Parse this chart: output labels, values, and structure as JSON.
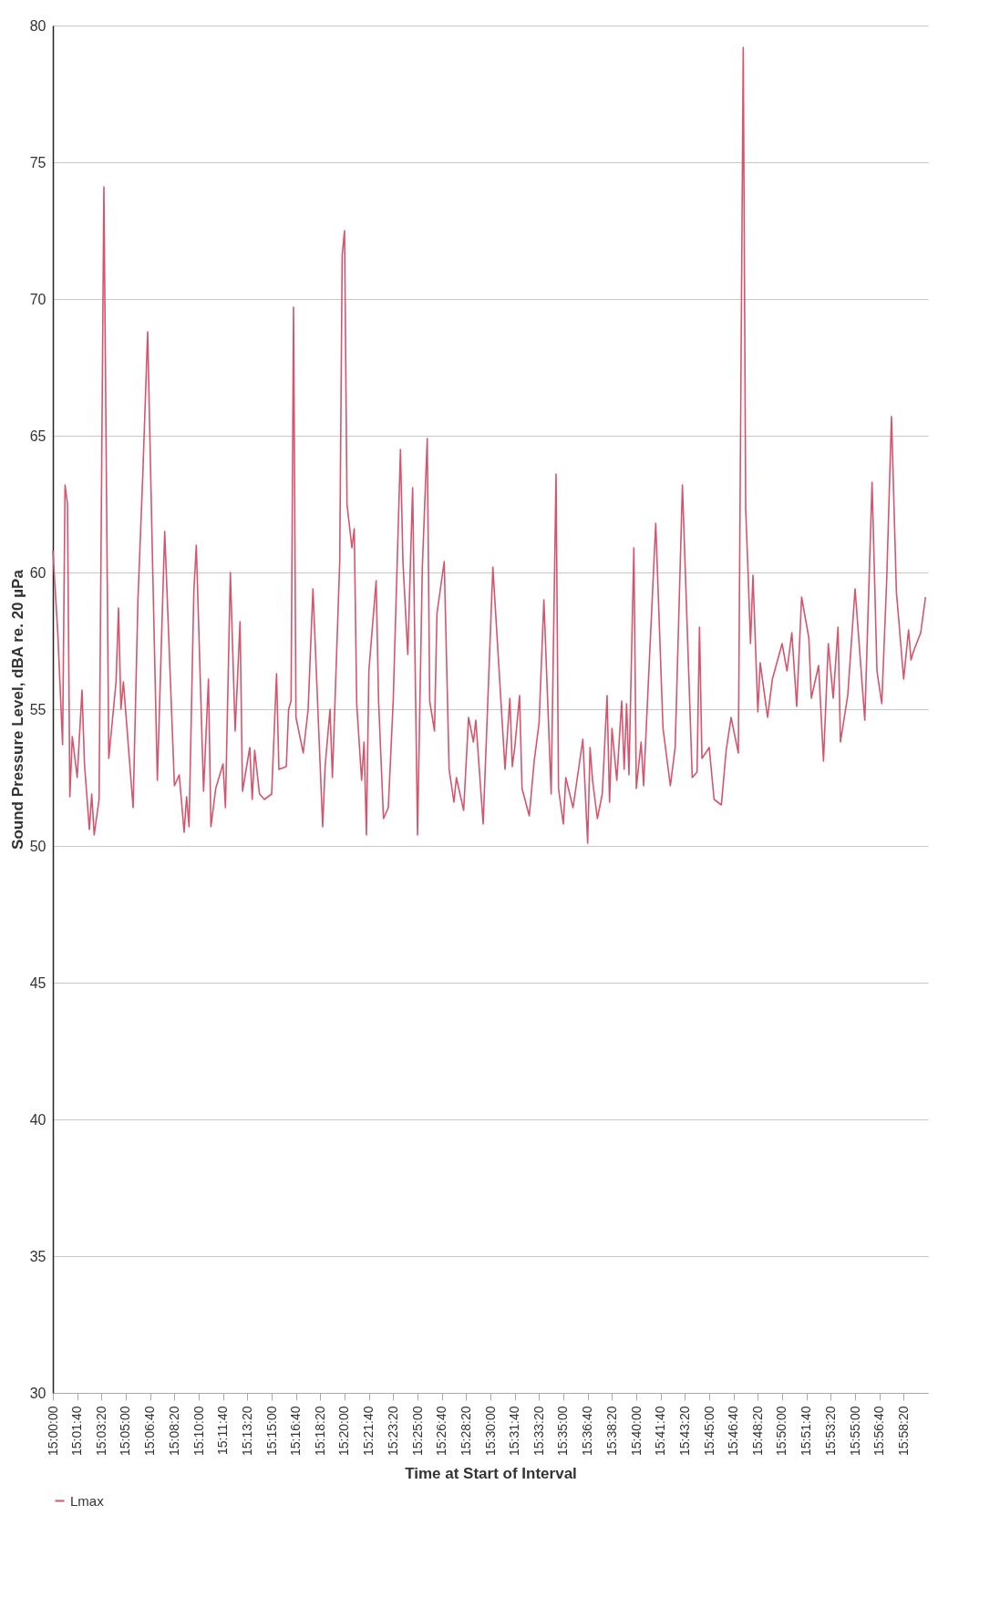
{
  "chart_data": {
    "type": "line",
    "xlabel": "Time at Start of Interval",
    "ylabel": "Sound Pressure Level, dBA re. 20 µPa",
    "xlim": [
      15,
      16
    ],
    "xticks": [
      {
        "value": 15,
        "label": "15:00:00"
      },
      {
        "value": 15.0278,
        "label": "15:01:40"
      },
      {
        "value": 15.0556,
        "label": "15:03:20"
      },
      {
        "value": 15.0833,
        "label": "15:05:00"
      },
      {
        "value": 15.1111,
        "label": "15:06:40"
      },
      {
        "value": 15.1389,
        "label": "15:08:20"
      },
      {
        "value": 15.1667,
        "label": "15:10:00"
      },
      {
        "value": 15.1944,
        "label": "15:11:40"
      },
      {
        "value": 15.2222,
        "label": "15:13:20"
      },
      {
        "value": 15.25,
        "label": "15:15:00"
      },
      {
        "value": 15.2778,
        "label": "15:16:40"
      },
      {
        "value": 15.3056,
        "label": "15:18:20"
      },
      {
        "value": 15.3333,
        "label": "15:20:00"
      },
      {
        "value": 15.3611,
        "label": "15:21:40"
      },
      {
        "value": 15.3889,
        "label": "15:23:20"
      },
      {
        "value": 15.4167,
        "label": "15:25:00"
      },
      {
        "value": 15.4444,
        "label": "15:26:40"
      },
      {
        "value": 15.4722,
        "label": "15:28:20"
      },
      {
        "value": 15.5,
        "label": "15:30:00"
      },
      {
        "value": 15.5278,
        "label": "15:31:40"
      },
      {
        "value": 15.5556,
        "label": "15:33:20"
      },
      {
        "value": 15.5833,
        "label": "15:35:00"
      },
      {
        "value": 15.6111,
        "label": "15:36:40"
      },
      {
        "value": 15.6389,
        "label": "15:38:20"
      },
      {
        "value": 15.6667,
        "label": "15:40:00"
      },
      {
        "value": 15.6944,
        "label": "15:41:40"
      },
      {
        "value": 15.7222,
        "label": "15:43:20"
      },
      {
        "value": 15.75,
        "label": "15:45:00"
      },
      {
        "value": 15.7778,
        "label": "15:46:40"
      },
      {
        "value": 15.8056,
        "label": "15:48:20"
      },
      {
        "value": 15.8333,
        "label": "15:50:00"
      },
      {
        "value": 15.8611,
        "label": "15:51:40"
      },
      {
        "value": 15.8889,
        "label": "15:53:20"
      },
      {
        "value": 15.9167,
        "label": "15:55:00"
      },
      {
        "value": 15.9444,
        "label": "15:56:40"
      },
      {
        "value": 15.9722,
        "label": "15:58:20"
      }
    ],
    "ylim": [
      30,
      80
    ],
    "yticks": [
      30,
      35,
      40,
      45,
      50,
      55,
      60,
      65,
      70,
      75,
      80
    ],
    "grid": "y",
    "legend": "bottom",
    "x": [
      15,
      15.0056,
      15.0111,
      15.0139,
      15.0167,
      15.0194,
      15.0222,
      15.0278,
      15.0333,
      15.0361,
      15.0417,
      15.0444,
      15.0472,
      15.0528,
      15.0583,
      15.0639,
      15.0722,
      15.075,
      15.0778,
      15.0806,
      15.0917,
      15.0972,
      15.1028,
      15.1083,
      15.1139,
      15.1194,
      15.1278,
      15.1389,
      15.1444,
      15.15,
      15.1528,
      15.1556,
      15.1611,
      15.1639,
      15.1722,
      15.1778,
      15.1806,
      15.1861,
      15.1944,
      15.1972,
      15.2028,
      15.2083,
      15.2139,
      15.2167,
      15.225,
      15.2278,
      15.2306,
      15.2361,
      15.2417,
      15.25,
      15.2556,
      15.2583,
      15.2667,
      15.2694,
      15.2722,
      15.275,
      15.2778,
      15.2861,
      15.2917,
      15.2972,
      15.3083,
      15.3111,
      15.3167,
      15.3194,
      15.3222,
      15.3278,
      15.3306,
      15.3333,
      15.3361,
      15.3417,
      15.3444,
      15.3472,
      15.3528,
      15.3556,
      15.3583,
      15.3611,
      15.3694,
      15.3722,
      15.3778,
      15.3833,
      15.3889,
      15.3972,
      15.4,
      15.4056,
      15.4111,
      15.4167,
      15.4222,
      15.4278,
      15.4306,
      15.4361,
      15.4389,
      15.4472,
      15.4528,
      15.4583,
      15.4611,
      15.4694,
      15.475,
      15.4806,
      15.4833,
      15.4917,
      15.5028,
      15.5167,
      15.5222,
      15.525,
      15.5278,
      15.5333,
      15.5361,
      15.5444,
      15.55,
      15.5556,
      15.5611,
      15.5694,
      15.575,
      15.5778,
      15.5833,
      15.5861,
      15.5944,
      15.6056,
      15.6111,
      15.6139,
      15.6167,
      15.6222,
      15.6278,
      15.6333,
      15.6361,
      15.6389,
      15.6444,
      15.65,
      15.6528,
      15.6556,
      15.6583,
      15.6639,
      15.6667,
      15.6722,
      15.675,
      15.6889,
      15.6972,
      15.7056,
      15.7111,
      15.7194,
      15.7306,
      15.7361,
      15.7389,
      15.7417,
      15.75,
      15.7556,
      15.7639,
      15.7694,
      15.775,
      15.7833,
      15.7889,
      15.7917,
      15.7944,
      15.7972,
      15.8,
      15.8056,
      15.8083,
      15.8167,
      15.8222,
      15.8333,
      15.8361,
      15.8389,
      15.8444,
      15.85,
      15.8556,
      15.8639,
      15.8667,
      15.875,
      15.8806,
      15.8861,
      15.8917,
      15.8972,
      15.9,
      15.9083,
      15.9167,
      15.9278,
      15.9361,
      15.9417,
      15.9472,
      15.9528,
      15.9583,
      15.9639,
      15.9722,
      15.9778,
      15.9806,
      15.9833,
      15.9917,
      15.9972
    ],
    "series": [
      {
        "name": "Lmax",
        "color": "#d4566e",
        "values": [
          60.8,
          57.8,
          53.7,
          63.2,
          62.5,
          51.8,
          54.0,
          52.5,
          55.7,
          53.0,
          50.6,
          51.9,
          50.4,
          51.7,
          74.1,
          53.2,
          56.0,
          58.7,
          55.0,
          56.0,
          51.4,
          59.0,
          63.6,
          68.8,
          60.4,
          52.4,
          61.5,
          52.2,
          52.6,
          50.5,
          51.8,
          50.7,
          59.3,
          61.0,
          52.0,
          56.1,
          50.7,
          52.1,
          53.0,
          51.4,
          60.0,
          54.2,
          58.2,
          52.0,
          53.6,
          51.7,
          53.5,
          51.9,
          51.7,
          51.9,
          56.3,
          52.8,
          52.9,
          55.0,
          55.3,
          69.7,
          54.7,
          53.4,
          55.0,
          59.4,
          50.7,
          52.9,
          55.0,
          52.5,
          55.1,
          60.4,
          71.6,
          72.5,
          62.5,
          60.9,
          61.6,
          55.2,
          52.4,
          53.8,
          50.4,
          56.4,
          59.7,
          55.3,
          51.0,
          51.4,
          55.3,
          64.5,
          60.4,
          57.0,
          63.1,
          50.4,
          60.2,
          64.9,
          55.3,
          54.2,
          58.5,
          60.4,
          52.8,
          51.6,
          52.5,
          51.3,
          54.7,
          53.8,
          54.6,
          50.8,
          60.2,
          52.8,
          55.4,
          52.9,
          53.6,
          55.5,
          52.1,
          51.1,
          53.1,
          54.5,
          59.0,
          51.9,
          63.6,
          52.1,
          50.8,
          52.5,
          51.4,
          53.9,
          50.1,
          53.6,
          52.4,
          51.0,
          51.9,
          55.5,
          51.6,
          54.3,
          52.4,
          55.3,
          52.8,
          55.2,
          52.6,
          60.9,
          52.1,
          53.8,
          52.2,
          61.8,
          54.3,
          52.2,
          53.6,
          63.2,
          52.5,
          52.7,
          58.0,
          53.2,
          53.6,
          51.7,
          51.5,
          53.5,
          54.7,
          53.4,
          79.2,
          62.3,
          60.0,
          57.4,
          59.9,
          54.9,
          56.7,
          54.7,
          56.1,
          57.4,
          56.9,
          56.4,
          57.8,
          55.1,
          59.1,
          57.6,
          55.4,
          56.6,
          53.1,
          57.4,
          55.4,
          58.0,
          53.8,
          55.5,
          59.4,
          54.6,
          63.3,
          56.4,
          55.2,
          59.7,
          65.7,
          59.3,
          56.1,
          57.9,
          56.8,
          57.1,
          57.8,
          59.1
        ]
      }
    ]
  }
}
